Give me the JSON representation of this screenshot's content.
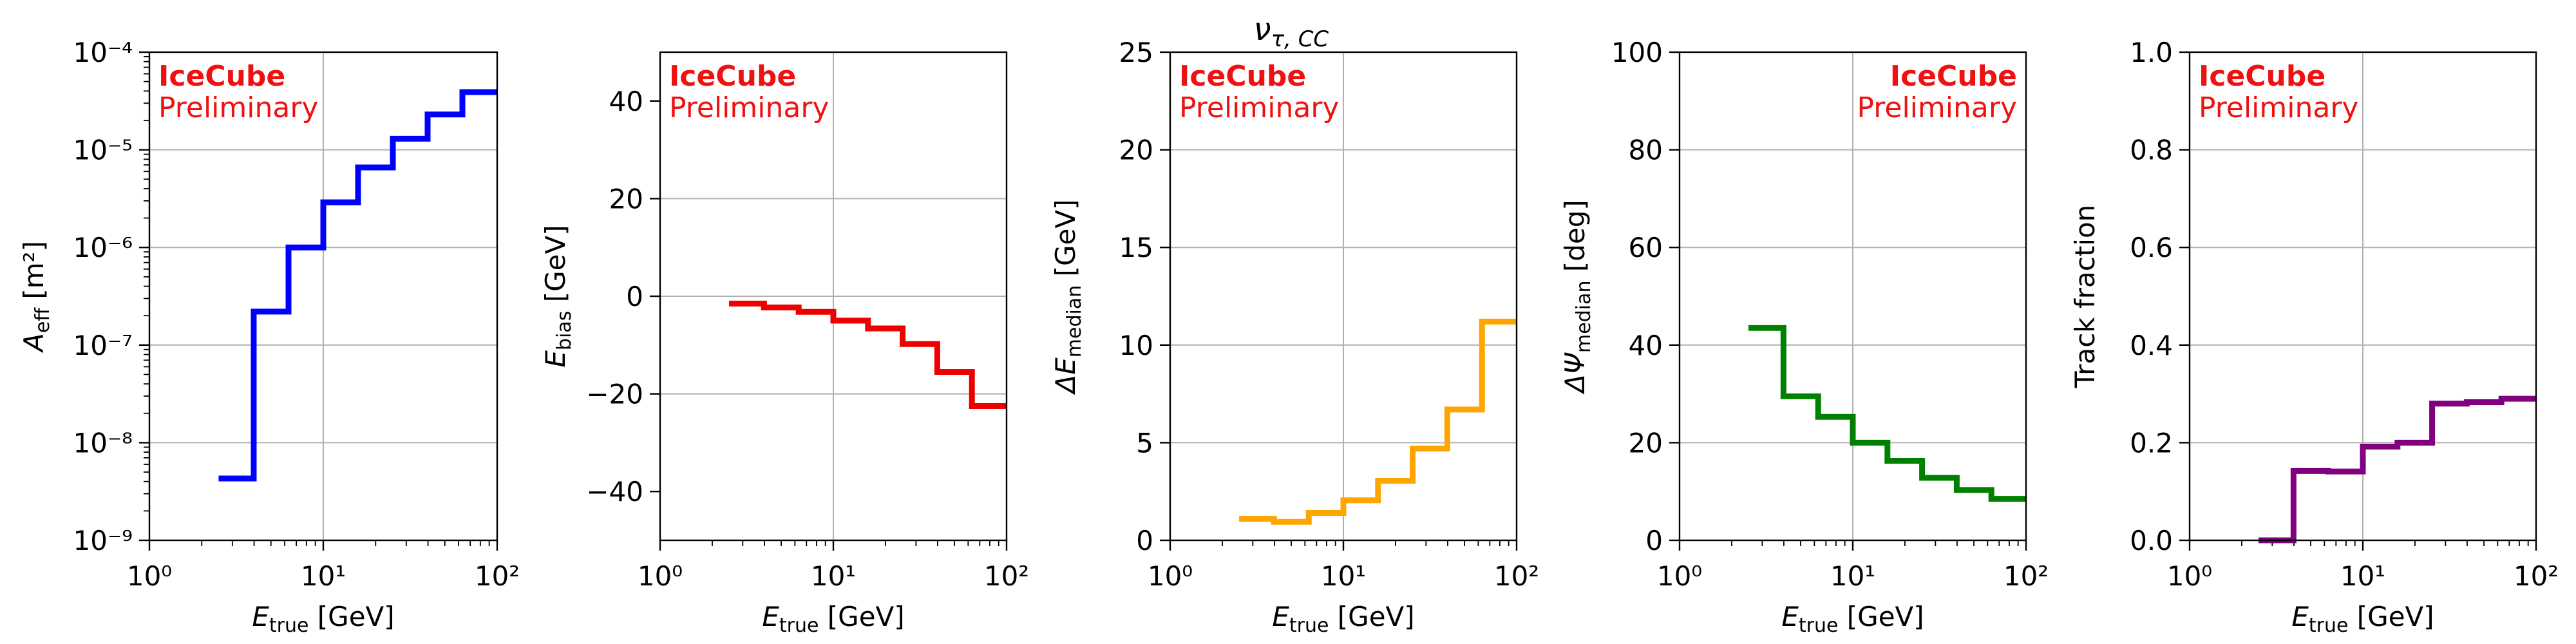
{
  "figure_title": "ν",
  "figure_title_sub": "τ, CC",
  "colors": {
    "label": "#ee1111",
    "grid": "#b0b0b0",
    "axis": "#000000"
  },
  "chart_data": [
    {
      "type": "line",
      "step": true,
      "xscale": "log",
      "yscale": "log",
      "xlim": [
        1,
        100
      ],
      "ylim": [
        1e-09,
        0.0001
      ],
      "xticks": [
        1,
        10,
        100
      ],
      "yticks": [
        1e-09,
        1e-08,
        1e-07,
        1e-06,
        1e-05,
        0.0001
      ],
      "xlabel": "E",
      "xlabel_sub": "true",
      "xlabel_unit": " [GeV]",
      "ylabel": "A",
      "ylabel_sub": "eff",
      "ylabel_unit": " [m²]",
      "color": "#0000ff",
      "edges": [
        2.5,
        3.98,
        6.31,
        10,
        15.85,
        25.12,
        39.81,
        63.1,
        100
      ],
      "values": [
        4.3e-09,
        2.2e-07,
        1e-06,
        2.9e-06,
        6.6e-06,
        1.3e-05,
        2.3e-05,
        3.9e-05
      ],
      "annotation": [
        "IceCube",
        "Preliminary"
      ],
      "annotation_loc": "upper-left"
    },
    {
      "type": "line",
      "step": true,
      "xscale": "log",
      "yscale": "linear",
      "xlim": [
        1,
        100
      ],
      "ylim": [
        -50,
        50
      ],
      "xticks": [
        1,
        10,
        100
      ],
      "yticks": [
        -40,
        -20,
        0,
        20,
        40
      ],
      "xlabel": "E",
      "xlabel_sub": "true",
      "xlabel_unit": " [GeV]",
      "ylabel": "E",
      "ylabel_sub": "bias",
      "ylabel_unit": " [GeV]",
      "color": "#ee0000",
      "edges": [
        2.5,
        3.98,
        6.31,
        10,
        15.85,
        25.12,
        39.81,
        63.1,
        100
      ],
      "values": [
        -1.5,
        -2.3,
        -3.2,
        -5,
        -6.6,
        -9.8,
        -15.5,
        -22.5
      ],
      "annotation": [
        "IceCube",
        "Preliminary"
      ],
      "annotation_loc": "upper-left"
    },
    {
      "type": "line",
      "step": true,
      "xscale": "log",
      "yscale": "linear",
      "xlim": [
        1,
        100
      ],
      "ylim": [
        0,
        25
      ],
      "xticks": [
        1,
        10,
        100
      ],
      "yticks": [
        0,
        5,
        10,
        15,
        20,
        25
      ],
      "xlabel": "E",
      "xlabel_sub": "true",
      "xlabel_unit": " [GeV]",
      "ylabel": "ΔE",
      "ylabel_sub": "median",
      "ylabel_unit": " [GeV]",
      "color": "#ffa500",
      "edges": [
        2.5,
        3.98,
        6.31,
        10,
        15.85,
        25.12,
        39.81,
        63.1,
        100
      ],
      "values": [
        1.1,
        0.95,
        1.4,
        2.05,
        3.05,
        4.7,
        6.7,
        11.2
      ],
      "annotation": [
        "IceCube",
        "Preliminary"
      ],
      "annotation_loc": "upper-left"
    },
    {
      "type": "line",
      "step": true,
      "xscale": "log",
      "yscale": "linear",
      "xlim": [
        1,
        100
      ],
      "ylim": [
        0,
        100
      ],
      "xticks": [
        1,
        10,
        100
      ],
      "yticks": [
        0,
        20,
        40,
        60,
        80,
        100
      ],
      "xlabel": "E",
      "xlabel_sub": "true",
      "xlabel_unit": " [GeV]",
      "ylabel": "ΔΨ",
      "ylabel_sub": "median",
      "ylabel_unit": " [deg]",
      "color": "#008000",
      "edges": [
        2.5,
        3.98,
        6.31,
        10,
        15.85,
        25.12,
        39.81,
        63.1,
        100
      ],
      "values": [
        43.5,
        29.5,
        25.3,
        20,
        16.3,
        12.8,
        10.3,
        8.5
      ],
      "annotation": [
        "IceCube",
        "Preliminary"
      ],
      "annotation_loc": "upper-right"
    },
    {
      "type": "line",
      "step": true,
      "xscale": "log",
      "yscale": "linear",
      "xlim": [
        1,
        100
      ],
      "ylim": [
        0,
        1
      ],
      "xticks": [
        1,
        10,
        100
      ],
      "yticks": [
        0,
        0.2,
        0.4,
        0.6,
        0.8,
        1
      ],
      "ytick_labels": [
        "0.0",
        "0.2",
        "0.4",
        "0.6",
        "0.8",
        "1.0"
      ],
      "xlabel": "E",
      "xlabel_sub": "true",
      "xlabel_unit": " [GeV]",
      "ylabel": "Track fraction",
      "ylabel_sub": "",
      "ylabel_unit": "",
      "color": "#800080",
      "edges": [
        2.5,
        3.98,
        6.31,
        10,
        15.85,
        25.12,
        39.81,
        63.1,
        100
      ],
      "values": [
        0,
        0.142,
        0.141,
        0.192,
        0.2,
        0.28,
        0.283,
        0.29
      ],
      "annotation": [
        "IceCube",
        "Preliminary"
      ],
      "annotation_loc": "upper-left"
    }
  ]
}
